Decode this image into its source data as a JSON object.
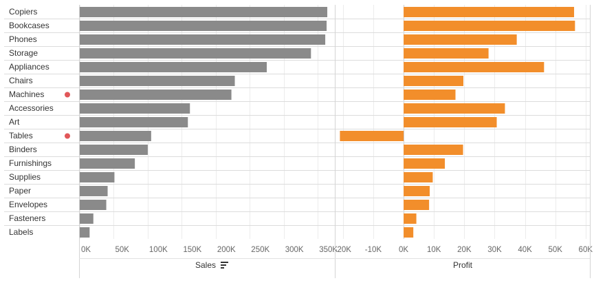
{
  "chart_data": [
    {
      "type": "bar",
      "orientation": "horizontal",
      "xlabel": "Sales",
      "sort_indicator": "descending",
      "categories": [
        "Copiers",
        "Bookcases",
        "Phones",
        "Storage",
        "Appliances",
        "Chairs",
        "Machines",
        "Accessories",
        "Art",
        "Tables",
        "Binders",
        "Furnishings",
        "Supplies",
        "Paper",
        "Envelopes",
        "Fasteners",
        "Labels"
      ],
      "flagged": [
        "Machines",
        "Tables"
      ],
      "values": [
        364000,
        363000,
        361000,
        340000,
        275000,
        228000,
        223000,
        162000,
        159000,
        105000,
        100000,
        81000,
        51000,
        41000,
        39000,
        20000,
        14500
      ],
      "xlim": [
        0,
        370000
      ],
      "ticks": [
        0,
        50000,
        100000,
        150000,
        200000,
        250000,
        300000,
        350000
      ],
      "tick_labels": [
        "0K",
        "50K",
        "100K",
        "150K",
        "200K",
        "250K",
        "300K",
        "350K"
      ],
      "color": "#8a8a8a"
    },
    {
      "type": "bar",
      "orientation": "horizontal",
      "xlabel": "Profit",
      "categories": [
        "Copiers",
        "Bookcases",
        "Phones",
        "Storage",
        "Appliances",
        "Chairs",
        "Machines",
        "Accessories",
        "Art",
        "Tables",
        "Binders",
        "Furnishings",
        "Supplies",
        "Paper",
        "Envelopes",
        "Fasteners",
        "Labels"
      ],
      "values": [
        56200,
        56500,
        37300,
        28000,
        46300,
        19700,
        17100,
        33400,
        30700,
        -21000,
        19600,
        13600,
        9600,
        8600,
        8400,
        4200,
        3200
      ],
      "xlim": [
        -22000,
        60500
      ],
      "ticks": [
        -20000,
        -10000,
        0,
        10000,
        20000,
        30000,
        40000,
        50000,
        60000
      ],
      "tick_labels": [
        "-20K",
        "-10K",
        "0K",
        "10K",
        "20K",
        "30K",
        "40K",
        "50K",
        "60K"
      ],
      "color": "#f28e2b"
    }
  ],
  "marker_color": "#e15759"
}
